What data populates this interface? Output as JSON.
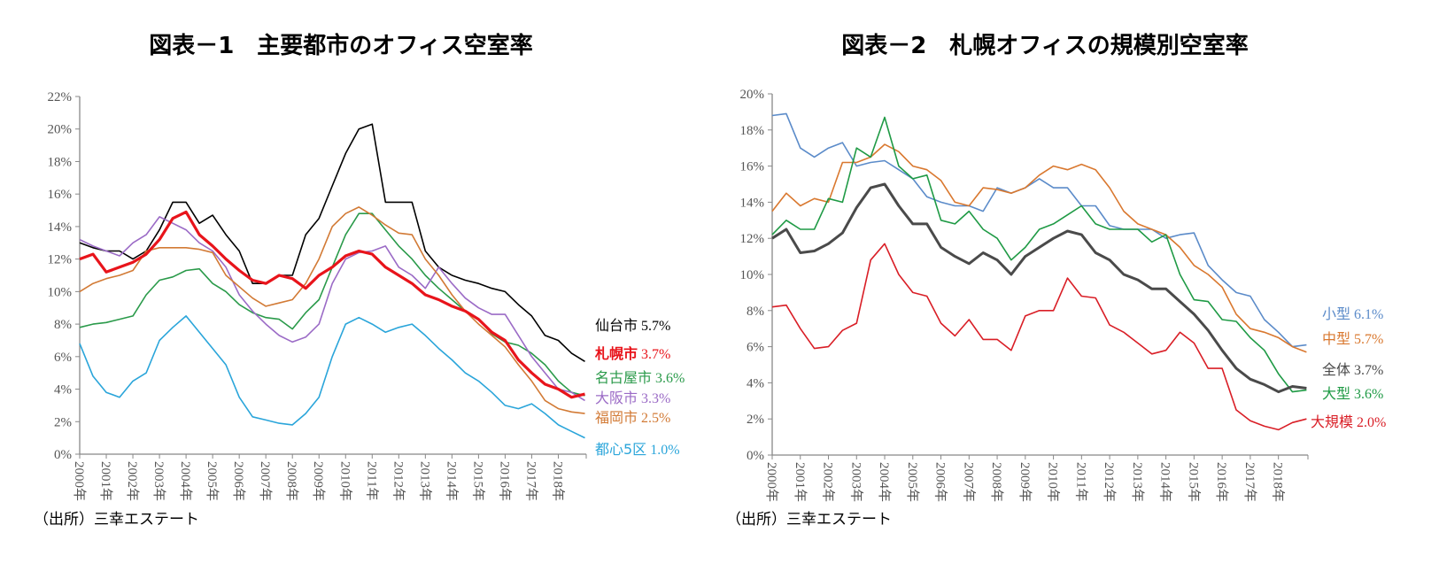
{
  "chart_data": [
    {
      "type": "line",
      "title": "図表－1　主要都市のオフィス空室率",
      "source": "（出所）三幸エステート",
      "x": [
        2000,
        2000.5,
        2001,
        2001.5,
        2002,
        2002.5,
        2003,
        2003.5,
        2004,
        2004.5,
        2005,
        2005.5,
        2006,
        2006.5,
        2007,
        2007.5,
        2008,
        2008.5,
        2009,
        2009.5,
        2010,
        2010.5,
        2011,
        2011.5,
        2012,
        2012.5,
        2013,
        2013.5,
        2014,
        2014.5,
        2015,
        2015.5,
        2016,
        2016.5,
        2017,
        2017.5,
        2018,
        2018.5,
        2019
      ],
      "xticks": [
        "2000年",
        "2001年",
        "2002年",
        "2003年",
        "2004年",
        "2005年",
        "2006年",
        "2007年",
        "2008年",
        "2009年",
        "2010年",
        "2011年",
        "2012年",
        "2013年",
        "2014年",
        "2015年",
        "2016年",
        "2017年",
        "2018年"
      ],
      "xlim": [
        2000,
        2019.05
      ],
      "ylim": [
        0,
        22
      ],
      "yticks": [
        "0%",
        "2%",
        "4%",
        "6%",
        "8%",
        "10%",
        "12%",
        "14%",
        "16%",
        "18%",
        "20%",
        "22%"
      ],
      "grid": false,
      "legend": "right, inline labels at line ends",
      "series": [
        {
          "name": "仙台市",
          "label": "仙台市",
          "value_label": "5.7%",
          "color": "#000000",
          "width": 1.6,
          "values": [
            13,
            12.7,
            12.5,
            12.5,
            12.0,
            12.5,
            13.8,
            15.5,
            15.5,
            14.2,
            14.7,
            13.5,
            12.5,
            10.5,
            10.5,
            11.0,
            11.0,
            13.5,
            14.5,
            16.5,
            18.5,
            20.0,
            20.3,
            15.5,
            15.5,
            15.5,
            12.5,
            11.5,
            11.0,
            10.7,
            10.5,
            10.2,
            10.0,
            9.2,
            8.5,
            7.3,
            7.0,
            6.2,
            5.7
          ]
        },
        {
          "name": "名古屋市",
          "label": "名古屋市",
          "value_label": "3.6%",
          "color": "#2a9a4a",
          "width": 1.6,
          "values": [
            7.8,
            8.0,
            8.1,
            8.3,
            8.5,
            9.8,
            10.7,
            10.9,
            11.3,
            11.4,
            10.5,
            10.0,
            9.2,
            8.7,
            8.4,
            8.3,
            7.7,
            8.7,
            9.5,
            11.5,
            13.5,
            14.8,
            14.8,
            13.8,
            12.8,
            12.0,
            11.0,
            10.2,
            9.5,
            8.8,
            8.3,
            7.4,
            6.9,
            6.7,
            6.2,
            5.5,
            4.5,
            3.8,
            3.6
          ]
        },
        {
          "name": "大阪市",
          "label": "大阪市",
          "value_label": "3.3%",
          "color": "#9b6bc6",
          "width": 1.6,
          "values": [
            13.2,
            12.8,
            12.5,
            12.2,
            13.0,
            13.5,
            14.6,
            14.2,
            13.8,
            13.0,
            12.5,
            11.5,
            9.8,
            8.8,
            8.0,
            7.3,
            6.9,
            7.2,
            8.0,
            10.5,
            12.0,
            12.4,
            12.5,
            12.8,
            11.5,
            11.0,
            10.2,
            11.5,
            10.5,
            9.6,
            9.0,
            8.6,
            8.6,
            7.3,
            6.0,
            5.0,
            4.0,
            3.8,
            3.3
          ]
        },
        {
          "name": "福岡市",
          "label": "福岡市",
          "value_label": "2.5%",
          "color": "#d27a35",
          "width": 1.6,
          "values": [
            10.0,
            10.5,
            10.8,
            11.0,
            11.3,
            12.5,
            12.7,
            12.7,
            12.7,
            12.6,
            12.4,
            11.0,
            10.3,
            9.6,
            9.1,
            9.3,
            9.5,
            10.5,
            12.0,
            14.0,
            14.8,
            15.2,
            14.7,
            14.1,
            13.6,
            13.5,
            12.0,
            11.0,
            9.8,
            8.8,
            8.0,
            7.3,
            6.6,
            5.5,
            4.5,
            3.3,
            2.8,
            2.6,
            2.5
          ]
        },
        {
          "name": "都心5区",
          "label": "都心5区",
          "value_label": "1.0%",
          "color": "#2aa5da",
          "width": 1.6,
          "values": [
            6.8,
            4.8,
            3.8,
            3.5,
            4.5,
            5.0,
            7.0,
            7.8,
            8.5,
            7.5,
            6.5,
            5.5,
            3.5,
            2.3,
            2.1,
            1.9,
            1.8,
            2.5,
            3.5,
            6.0,
            8.0,
            8.4,
            8.0,
            7.5,
            7.8,
            8.0,
            7.3,
            6.5,
            5.8,
            5.0,
            4.5,
            3.8,
            3.0,
            2.8,
            3.1,
            2.5,
            1.8,
            1.4,
            1.0
          ]
        },
        {
          "name": "札幌市",
          "label": "札幌市",
          "value_label": "3.7%",
          "color": "#e8141b",
          "width": 3.2,
          "bold": true,
          "values": [
            12.0,
            12.3,
            11.2,
            11.5,
            11.8,
            12.3,
            13.2,
            14.5,
            14.9,
            13.5,
            12.8,
            12.0,
            11.3,
            10.7,
            10.5,
            11.0,
            10.8,
            10.2,
            11.0,
            11.5,
            12.2,
            12.5,
            12.3,
            11.5,
            11.0,
            10.5,
            9.8,
            9.5,
            9.1,
            8.8,
            8.3,
            7.5,
            7.0,
            5.8,
            5.0,
            4.3,
            4.0,
            3.5,
            3.7
          ]
        }
      ]
    },
    {
      "type": "line",
      "title": "図表－2　札幌オフィスの規模別空室率",
      "source": "（出所）三幸エステート",
      "x": [
        2000,
        2000.5,
        2001,
        2001.5,
        2002,
        2002.5,
        2003,
        2003.5,
        2004,
        2004.5,
        2005,
        2005.5,
        2006,
        2006.5,
        2007,
        2007.5,
        2008,
        2008.5,
        2009,
        2009.5,
        2010,
        2010.5,
        2011,
        2011.5,
        2012,
        2012.5,
        2013,
        2013.5,
        2014,
        2014.5,
        2015,
        2015.5,
        2016,
        2016.5,
        2017,
        2017.5,
        2018,
        2018.5,
        2019
      ],
      "xticks": [
        "2000年",
        "2001年",
        "2002年",
        "2003年",
        "2004年",
        "2005年",
        "2006年",
        "2007年",
        "2008年",
        "2009年",
        "2010年",
        "2011年",
        "2012年",
        "2013年",
        "2014年",
        "2015年",
        "2016年",
        "2017年",
        "2018年"
      ],
      "xlim": [
        2000,
        2019.05
      ],
      "ylim": [
        0,
        20
      ],
      "yticks": [
        "0%",
        "2%",
        "4%",
        "6%",
        "8%",
        "10%",
        "12%",
        "14%",
        "16%",
        "18%",
        "20%"
      ],
      "grid": false,
      "legend": "right, inline labels at line ends",
      "series": [
        {
          "name": "小型",
          "label": "小型",
          "value_label": "6.1%",
          "color": "#5b8bc9",
          "width": 1.6,
          "values": [
            18.8,
            18.9,
            17.0,
            16.5,
            17.0,
            17.3,
            16.0,
            16.2,
            16.3,
            15.8,
            15.3,
            14.3,
            14.0,
            13.8,
            13.8,
            13.5,
            14.8,
            14.5,
            14.8,
            15.3,
            14.8,
            14.8,
            13.8,
            13.8,
            12.7,
            12.5,
            12.5,
            12.5,
            12.0,
            12.2,
            12.3,
            10.5,
            9.7,
            9.0,
            8.8,
            7.5,
            6.8,
            6.0,
            6.1
          ]
        },
        {
          "name": "中型",
          "label": "中型",
          "value_label": "5.7%",
          "color": "#d9782f",
          "width": 1.6,
          "values": [
            13.5,
            14.5,
            13.8,
            14.2,
            14.0,
            16.2,
            16.2,
            16.5,
            17.2,
            16.8,
            16.0,
            15.8,
            15.2,
            14.0,
            13.8,
            14.8,
            14.7,
            14.5,
            14.8,
            15.5,
            16.0,
            15.8,
            16.1,
            15.8,
            14.8,
            13.5,
            12.8,
            12.5,
            12.2,
            11.5,
            10.5,
            10.0,
            9.3,
            7.8,
            7.0,
            6.8,
            6.5,
            6.0,
            5.7
          ]
        },
        {
          "name": "大型",
          "label": "大型",
          "value_label": "3.6%",
          "color": "#1f9a45",
          "width": 1.6,
          "values": [
            12.2,
            13.0,
            12.5,
            12.5,
            14.2,
            14.0,
            17.0,
            16.5,
            18.7,
            16.0,
            15.3,
            15.5,
            13.0,
            12.8,
            13.5,
            12.5,
            12.0,
            10.8,
            11.5,
            12.5,
            12.8,
            13.3,
            13.8,
            12.8,
            12.5,
            12.5,
            12.5,
            11.8,
            12.2,
            10.0,
            8.6,
            8.5,
            7.5,
            7.4,
            6.5,
            5.8,
            4.5,
            3.5,
            3.6
          ]
        },
        {
          "name": "全体",
          "label": "全体",
          "value_label": "3.7%",
          "color": "#4a4a4a",
          "width": 3.0,
          "values": [
            12.0,
            12.5,
            11.2,
            11.3,
            11.7,
            12.3,
            13.7,
            14.8,
            15.0,
            13.8,
            12.8,
            12.8,
            11.5,
            11.0,
            10.6,
            11.2,
            10.8,
            10.0,
            11.0,
            11.5,
            12.0,
            12.4,
            12.2,
            11.2,
            10.8,
            10.0,
            9.7,
            9.2,
            9.2,
            8.5,
            7.8,
            6.9,
            5.8,
            4.8,
            4.2,
            3.9,
            3.5,
            3.8,
            3.7
          ]
        },
        {
          "name": "大規模",
          "label": "大規模",
          "value_label": "2.0%",
          "color": "#d91e26",
          "width": 1.6,
          "values": [
            8.2,
            8.3,
            7.0,
            5.9,
            6.0,
            6.9,
            7.3,
            10.8,
            11.7,
            10.0,
            9.0,
            8.8,
            7.3,
            6.6,
            7.5,
            6.4,
            6.4,
            5.8,
            7.7,
            8.0,
            8.0,
            9.8,
            8.8,
            8.7,
            7.2,
            6.8,
            6.2,
            5.6,
            5.8,
            6.8,
            6.2,
            4.8,
            4.8,
            2.5,
            1.9,
            1.6,
            1.4,
            1.8,
            2.0
          ]
        }
      ]
    }
  ]
}
